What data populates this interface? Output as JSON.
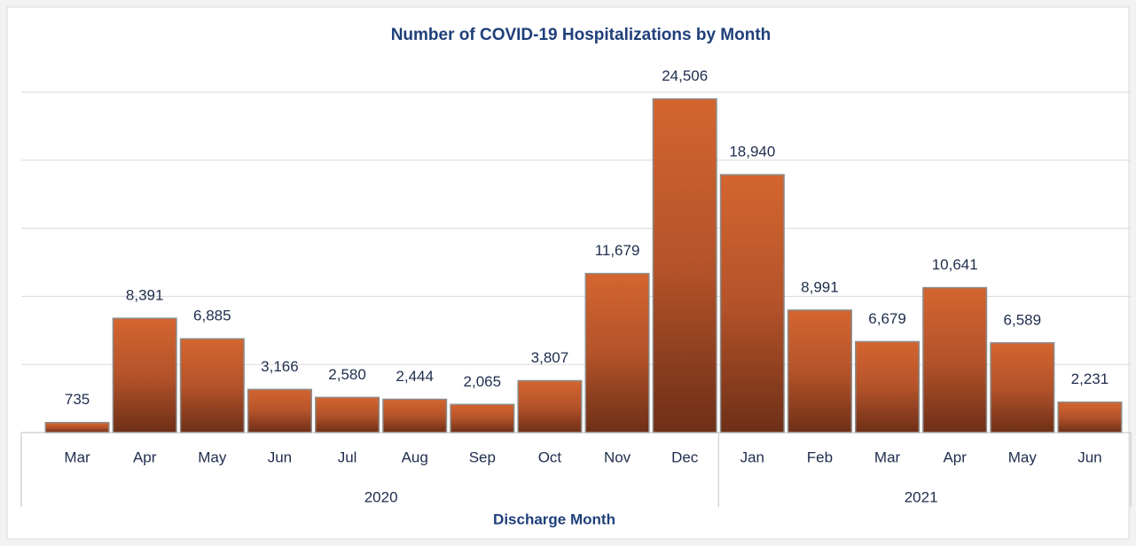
{
  "chart_data": {
    "type": "bar",
    "title": "Number of COVID-19 Hospitalizations by Month",
    "x_label": "Discharge Month",
    "categories": [
      "Mar",
      "Apr",
      "May",
      "Jun",
      "Jul",
      "Aug",
      "Sep",
      "Oct",
      "Nov",
      "Dec",
      "Jan",
      "Feb",
      "Mar",
      "Apr",
      "May",
      "Jun"
    ],
    "x_groups": [
      {
        "label": "2020",
        "span": 10
      },
      {
        "label": "2021",
        "span": 6
      }
    ],
    "values": [
      735,
      8391,
      6885,
      3166,
      2580,
      2444,
      2065,
      3807,
      11679,
      24506,
      18940,
      8991,
      6679,
      10641,
      6589,
      2231
    ],
    "value_labels": [
      "735",
      "8,391",
      "6,885",
      "3,166",
      "2,580",
      "2,444",
      "2,065",
      "3,807",
      "11,679",
      "24,506",
      "18,940",
      "8,991",
      "6,679",
      "10,641",
      "6,589",
      "2,231"
    ],
    "color": "#c65a2a",
    "ylim": [
      0,
      25000
    ],
    "yticks": [
      0,
      5000,
      10000,
      15000,
      20000,
      25000
    ],
    "grid": true
  }
}
